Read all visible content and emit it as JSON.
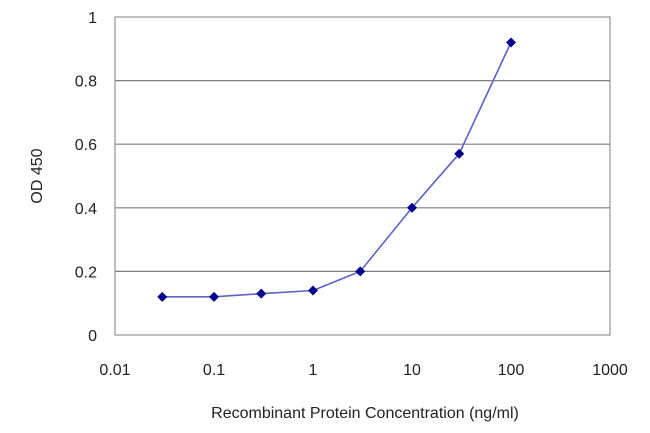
{
  "chart_data": {
    "type": "line",
    "title": "",
    "xlabel": "Recombinant Protein Concentration (ng/ml)",
    "ylabel": "OD 450",
    "x_scale": "log",
    "xlim": [
      0.01,
      1000
    ],
    "ylim": [
      0,
      1
    ],
    "x_ticks": [
      0.01,
      0.1,
      1,
      10,
      100,
      1000
    ],
    "x_tick_labels": [
      "0.01",
      "0.1",
      "1",
      "10",
      "100",
      "1000"
    ],
    "y_ticks": [
      0,
      0.2,
      0.4,
      0.6,
      0.8,
      1
    ],
    "y_tick_labels": [
      "0",
      "0.2",
      "0.4",
      "0.6",
      "0.8",
      "1"
    ],
    "grid": "horizontal",
    "legend": "none",
    "series": [
      {
        "x": [
          0.03,
          0.1,
          0.3,
          1,
          3,
          10,
          30,
          100
        ],
        "y": [
          0.12,
          0.12,
          0.13,
          0.14,
          0.2,
          0.4,
          0.57,
          0.92
        ]
      }
    ],
    "colors": {
      "line": "#5b63c8",
      "marker": "#00008b",
      "grid": "#7f7f7f",
      "axis": "#7f7f7f"
    }
  }
}
